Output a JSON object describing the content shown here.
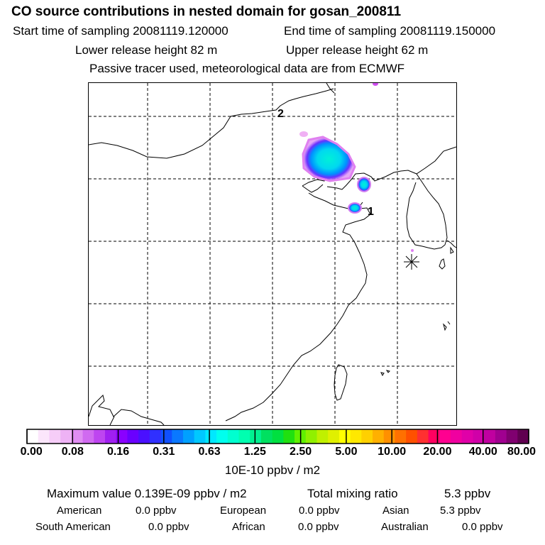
{
  "header": {
    "title": "CO  source contributions in nested domain for gosan_200811",
    "start_time": "Start time of sampling 20081119.120000",
    "end_time": "End time of sampling 20081119.150000",
    "lower_height": "Lower release height   82 m",
    "upper_height": "Upper release height   62 m",
    "note": "Passive tracer used, meteorological data are from ECMWF"
  },
  "map": {
    "labels": {
      "marker_1": "1",
      "marker_2": "2"
    }
  },
  "colorbar": {
    "ticks": [
      "0.00",
      "0.08",
      "0.16",
      "0.31",
      "0.63",
      "1.25",
      "2.50",
      "5.00",
      "10.00",
      "20.00",
      "40.00",
      "80.00"
    ],
    "colors": [
      "#ffffff",
      "#fbe6fb",
      "#f6cdf8",
      "#eeb2f5",
      "#e08df2",
      "#d06af0",
      "#be45f0",
      "#a020f0",
      "#8a00ff",
      "#6a00ff",
      "#4a10ff",
      "#3030ff",
      "#1050ff",
      "#0a78ff",
      "#00a0ff",
      "#00c8ff",
      "#00e8ff",
      "#00ffee",
      "#00ffd0",
      "#00ffb0",
      "#00f090",
      "#00e060",
      "#00e040",
      "#20e010",
      "#60f000",
      "#90f000",
      "#c0f000",
      "#e0f000",
      "#ffff00",
      "#ffe800",
      "#ffd000",
      "#ffb000",
      "#ff9000",
      "#ff7000",
      "#ff5000",
      "#ff3030",
      "#ff0060",
      "#ff0090",
      "#f000a0",
      "#e000a8",
      "#d000a8",
      "#c000a0",
      "#a00090",
      "#800070",
      "#600050"
    ],
    "units": "10E-10 ppbv / m2"
  },
  "stats": {
    "max_label": "Maximum value  0.139E-09 ppbv / m2",
    "total_label": "Total mixing ratio",
    "total_value": "5.3 ppbv",
    "regions": {
      "american": {
        "label": "American",
        "value": "0.0 ppbv"
      },
      "european": {
        "label": "European",
        "value": "0.0 ppbv"
      },
      "asian": {
        "label": "Asian",
        "value": "5.3 ppbv"
      },
      "south_american": {
        "label": "South American",
        "value": "0.0 ppbv"
      },
      "african": {
        "label": "African",
        "value": "0.0 ppbv"
      },
      "australian": {
        "label": "Australian",
        "value": "0.0 ppbv"
      }
    }
  }
}
